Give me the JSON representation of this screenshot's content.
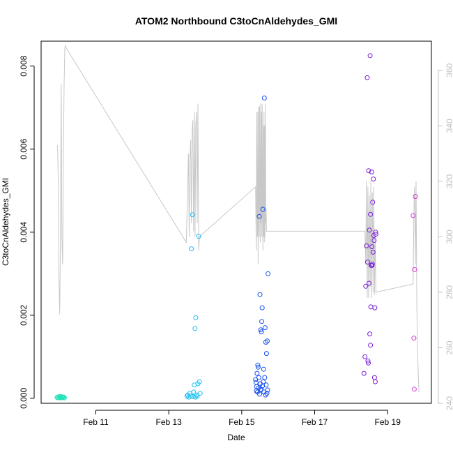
{
  "chart_data": {
    "type": "scatter",
    "title": "ATOM2 Northbound C3toCnAldehydes_GMI",
    "xlabel": "Date",
    "ylabel": "C3toCnAldehydes_GMI",
    "xlim": [
      9.5,
      20.2
    ],
    "ylim": [
      -0.00012,
      0.0086
    ],
    "y2lim": [
      240.0,
      370.5
    ],
    "grid": false,
    "x_ticks": [
      {
        "value": 11,
        "label": "Feb 11"
      },
      {
        "value": 13,
        "label": "Feb 13"
      },
      {
        "value": 15,
        "label": "Feb 15"
      },
      {
        "value": 17,
        "label": "Feb 17"
      },
      {
        "value": 19,
        "label": "Feb 19"
      }
    ],
    "y_ticks": [
      {
        "value": 0.0,
        "label": "0.000"
      },
      {
        "value": 0.002,
        "label": "0.002"
      },
      {
        "value": 0.004,
        "label": "0.004"
      },
      {
        "value": 0.006,
        "label": "0.006"
      },
      {
        "value": 0.008,
        "label": "0.008"
      }
    ],
    "y2_ticks": [
      {
        "value": 240,
        "label": "240"
      },
      {
        "value": 260,
        "label": "260"
      },
      {
        "value": 280,
        "label": "280"
      },
      {
        "value": 300,
        "label": "300"
      },
      {
        "value": 320,
        "label": "320"
      },
      {
        "value": 340,
        "label": "340"
      },
      {
        "value": 360,
        "label": "360"
      }
    ],
    "line_color": "#c8c8c8",
    "series": [
      {
        "color": "#22e0b8",
        "points": [
          [
            9.94,
            2e-05
          ],
          [
            9.96,
            3e-05
          ],
          [
            9.98,
            1e-05
          ],
          [
            10.0,
            4e-05
          ],
          [
            10.02,
            2e-05
          ],
          [
            10.04,
            3e-05
          ],
          [
            10.06,
            1e-05
          ],
          [
            10.08,
            3e-05
          ],
          [
            10.1,
            2e-05
          ],
          [
            10.12,
            3e-05
          ],
          [
            10.14,
            1e-05
          ],
          [
            10.05,
            4e-05
          ]
        ]
      },
      {
        "color": "#1cc0f0",
        "points": [
          [
            13.5,
            5e-05
          ],
          [
            13.52,
            8e-05
          ],
          [
            13.55,
            3e-05
          ],
          [
            13.58,
            0.00012
          ],
          [
            13.6,
            6e-05
          ],
          [
            13.62,
            0.0036
          ],
          [
            13.65,
            0.00442
          ],
          [
            13.68,
            0.00015
          ],
          [
            13.7,
            0.00032
          ],
          [
            13.72,
            0.00168
          ],
          [
            13.74,
            0.00194
          ],
          [
            13.76,
            8e-05
          ],
          [
            13.78,
            5e-05
          ],
          [
            13.8,
            0.00035
          ],
          [
            13.82,
            0.0039
          ],
          [
            13.84,
            0.0004
          ],
          [
            13.86,
            0.00012
          ],
          [
            13.66,
            4e-05
          ],
          [
            13.73,
            3e-05
          ]
        ]
      },
      {
        "color": "#1650f0",
        "points": [
          [
            15.38,
            0.00045
          ],
          [
            15.4,
            0.00018
          ],
          [
            15.42,
            0.0006
          ],
          [
            15.44,
            0.0008
          ],
          [
            15.46,
            0.00025
          ],
          [
            15.48,
            0.00438
          ],
          [
            15.5,
            0.0025
          ],
          [
            15.52,
            0.0002
          ],
          [
            15.54,
            0.0016
          ],
          [
            15.55,
            0.00185
          ],
          [
            15.56,
            0.00218
          ],
          [
            15.58,
            0.00455
          ],
          [
            15.6,
            0.0007
          ],
          [
            15.62,
            0.00723
          ],
          [
            15.64,
            0.0017
          ],
          [
            15.66,
            0.00135
          ],
          [
            15.68,
            0.00108
          ],
          [
            15.7,
            0.00138
          ],
          [
            15.72,
            0.003
          ],
          [
            15.45,
            0.00075
          ],
          [
            15.47,
            0.0005
          ],
          [
            15.51,
            0.00035
          ],
          [
            15.53,
            0.00022
          ],
          [
            15.57,
            0.0003
          ],
          [
            15.59,
            0.0004
          ],
          [
            15.61,
            0.00015
          ],
          [
            15.63,
            0.0005
          ],
          [
            15.65,
            8e-05
          ],
          [
            15.67,
            0.00032
          ],
          [
            15.69,
            0.00012
          ],
          [
            15.43,
            0.00015
          ],
          [
            15.49,
            0.0001
          ],
          [
            15.41,
            0.00028
          ],
          [
            15.39,
            0.00038
          ],
          [
            15.71,
            0.0002
          ],
          [
            15.52,
            0.00165
          ]
        ]
      },
      {
        "color": "#7a1cd8",
        "points": [
          [
            18.35,
            0.0006
          ],
          [
            18.38,
            0.001
          ],
          [
            18.4,
            0.0027
          ],
          [
            18.42,
            0.00367
          ],
          [
            18.44,
            0.00772
          ],
          [
            18.45,
            0.00328
          ],
          [
            18.46,
            0.0009
          ],
          [
            18.47,
            0.00085
          ],
          [
            18.48,
            0.00548
          ],
          [
            18.5,
            0.00405
          ],
          [
            18.52,
            0.00825
          ],
          [
            18.53,
            0.00443
          ],
          [
            18.54,
            0.0022
          ],
          [
            18.55,
            0.0032
          ],
          [
            18.56,
            0.00545
          ],
          [
            18.57,
            0.00365
          ],
          [
            18.58,
            0.00323
          ],
          [
            18.59,
            0.00472
          ],
          [
            18.6,
            0.00352
          ],
          [
            18.61,
            0.00528
          ],
          [
            18.62,
            0.00392
          ],
          [
            18.63,
            0.0038
          ],
          [
            18.64,
            0.0005
          ],
          [
            18.65,
            0.00218
          ],
          [
            18.66,
            0.0004
          ],
          [
            18.67,
            0.004
          ],
          [
            18.68,
            0.00395
          ],
          [
            18.51,
            0.00155
          ],
          [
            18.53,
            0.00128
          ],
          [
            18.49,
            0.00277
          ],
          [
            18.57,
            0.0032
          ]
        ]
      },
      {
        "color": "#d838d8",
        "points": [
          [
            19.7,
            0.0044
          ],
          [
            19.72,
            0.00145
          ],
          [
            19.74,
            0.0031
          ],
          [
            19.76,
            0.00486
          ],
          [
            19.73,
            0.00022
          ]
        ]
      }
    ],
    "altitude_line": [
      [
        9.95,
        333
      ],
      [
        9.97,
        320
      ],
      [
        9.99,
        285
      ],
      [
        10.01,
        272
      ],
      [
        10.03,
        300
      ],
      [
        10.05,
        355
      ],
      [
        10.07,
        300
      ],
      [
        10.09,
        290
      ],
      [
        10.11,
        330
      ],
      [
        10.13,
        355
      ],
      [
        10.15,
        368
      ],
      [
        10.17,
        369
      ],
      [
        10.19,
        368
      ],
      [
        13.48,
        298
      ],
      [
        13.5,
        308
      ],
      [
        13.52,
        320
      ],
      [
        13.54,
        330
      ],
      [
        13.56,
        300
      ],
      [
        13.58,
        328
      ],
      [
        13.6,
        335
      ],
      [
        13.62,
        305
      ],
      [
        13.64,
        338
      ],
      [
        13.66,
        342
      ],
      [
        13.68,
        302
      ],
      [
        13.7,
        345
      ],
      [
        13.72,
        300
      ],
      [
        13.74,
        340
      ],
      [
        13.76,
        345
      ],
      [
        13.78,
        305
      ],
      [
        13.8,
        348
      ],
      [
        13.82,
        295
      ],
      [
        13.84,
        300
      ],
      [
        15.38,
        318
      ],
      [
        15.39,
        305
      ],
      [
        15.4,
        295
      ],
      [
        15.41,
        345
      ],
      [
        15.42,
        315
      ],
      [
        15.43,
        300
      ],
      [
        15.44,
        345
      ],
      [
        15.45,
        290
      ],
      [
        15.46,
        347
      ],
      [
        15.47,
        310
      ],
      [
        15.48,
        300
      ],
      [
        15.49,
        347
      ],
      [
        15.5,
        315
      ],
      [
        15.51,
        298
      ],
      [
        15.52,
        348
      ],
      [
        15.53,
        305
      ],
      [
        15.54,
        345
      ],
      [
        15.55,
        300
      ],
      [
        15.56,
        348
      ],
      [
        15.57,
        310
      ],
      [
        15.58,
        295
      ],
      [
        15.59,
        340
      ],
      [
        15.6,
        300
      ],
      [
        15.61,
        345
      ],
      [
        15.62,
        298
      ],
      [
        15.63,
        340
      ],
      [
        15.64,
        300
      ],
      [
        15.65,
        348
      ],
      [
        15.66,
        305
      ],
      [
        15.67,
        310
      ],
      [
        15.68,
        302
      ],
      [
        15.69,
        302
      ],
      [
        15.7,
        302
      ],
      [
        18.38,
        302
      ],
      [
        18.4,
        290
      ],
      [
        18.42,
        320
      ],
      [
        18.44,
        278
      ],
      [
        18.46,
        318
      ],
      [
        18.48,
        278
      ],
      [
        18.5,
        315
      ],
      [
        18.52,
        282
      ],
      [
        18.54,
        320
      ],
      [
        18.56,
        278
      ],
      [
        18.58,
        316
      ],
      [
        18.6,
        280
      ],
      [
        18.62,
        318
      ],
      [
        18.64,
        279
      ],
      [
        18.66,
        300
      ],
      [
        18.68,
        280
      ],
      [
        19.7,
        283
      ],
      [
        19.72,
        310
      ],
      [
        19.74,
        318
      ],
      [
        19.76,
        290
      ],
      [
        19.78,
        320
      ],
      [
        19.8,
        275
      ],
      [
        19.82,
        260
      ],
      [
        19.84,
        250
      ],
      [
        19.86,
        244
      ]
    ]
  }
}
